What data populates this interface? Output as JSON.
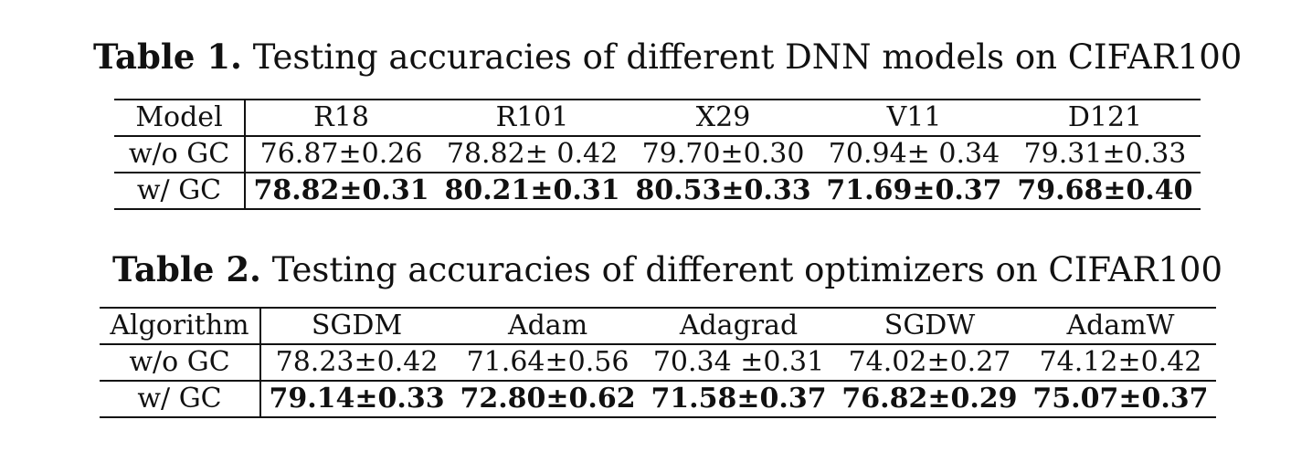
{
  "table1": {
    "caption_label": "Table 1.",
    "caption_text": "Testing accuracies of different DNN models on CIFAR100",
    "header": [
      "Model",
      "R18",
      "R101",
      "X29",
      "V11",
      "D121"
    ],
    "rows": [
      {
        "label": "w/o GC",
        "values": [
          "76.87±0.26",
          "78.82± 0.42",
          "79.70±0.30",
          "70.94± 0.34",
          "79.31±0.33"
        ]
      },
      {
        "label": "w/ GC",
        "values": [
          "78.82±0.31",
          "80.21±0.31",
          "80.53±0.33",
          "71.69±0.37",
          "79.68±0.40"
        ]
      }
    ]
  },
  "table2": {
    "caption_label": "Table 2.",
    "caption_text": "Testing accuracies of different optimizers on CIFAR100",
    "header": [
      "Algorithm",
      "SGDM",
      "Adam",
      "Adagrad",
      "SGDW",
      "AdamW"
    ],
    "rows": [
      {
        "label": "w/o GC",
        "values": [
          "78.23±0.42",
          "71.64±0.56",
          "70.34 ±0.31",
          "74.02±0.27",
          "74.12±0.42"
        ]
      },
      {
        "label": "w/ GC",
        "values": [
          "79.14±0.33",
          "72.80±0.62",
          "71.58±0.37",
          "76.82±0.29",
          "75.07±0.37"
        ]
      }
    ]
  }
}
